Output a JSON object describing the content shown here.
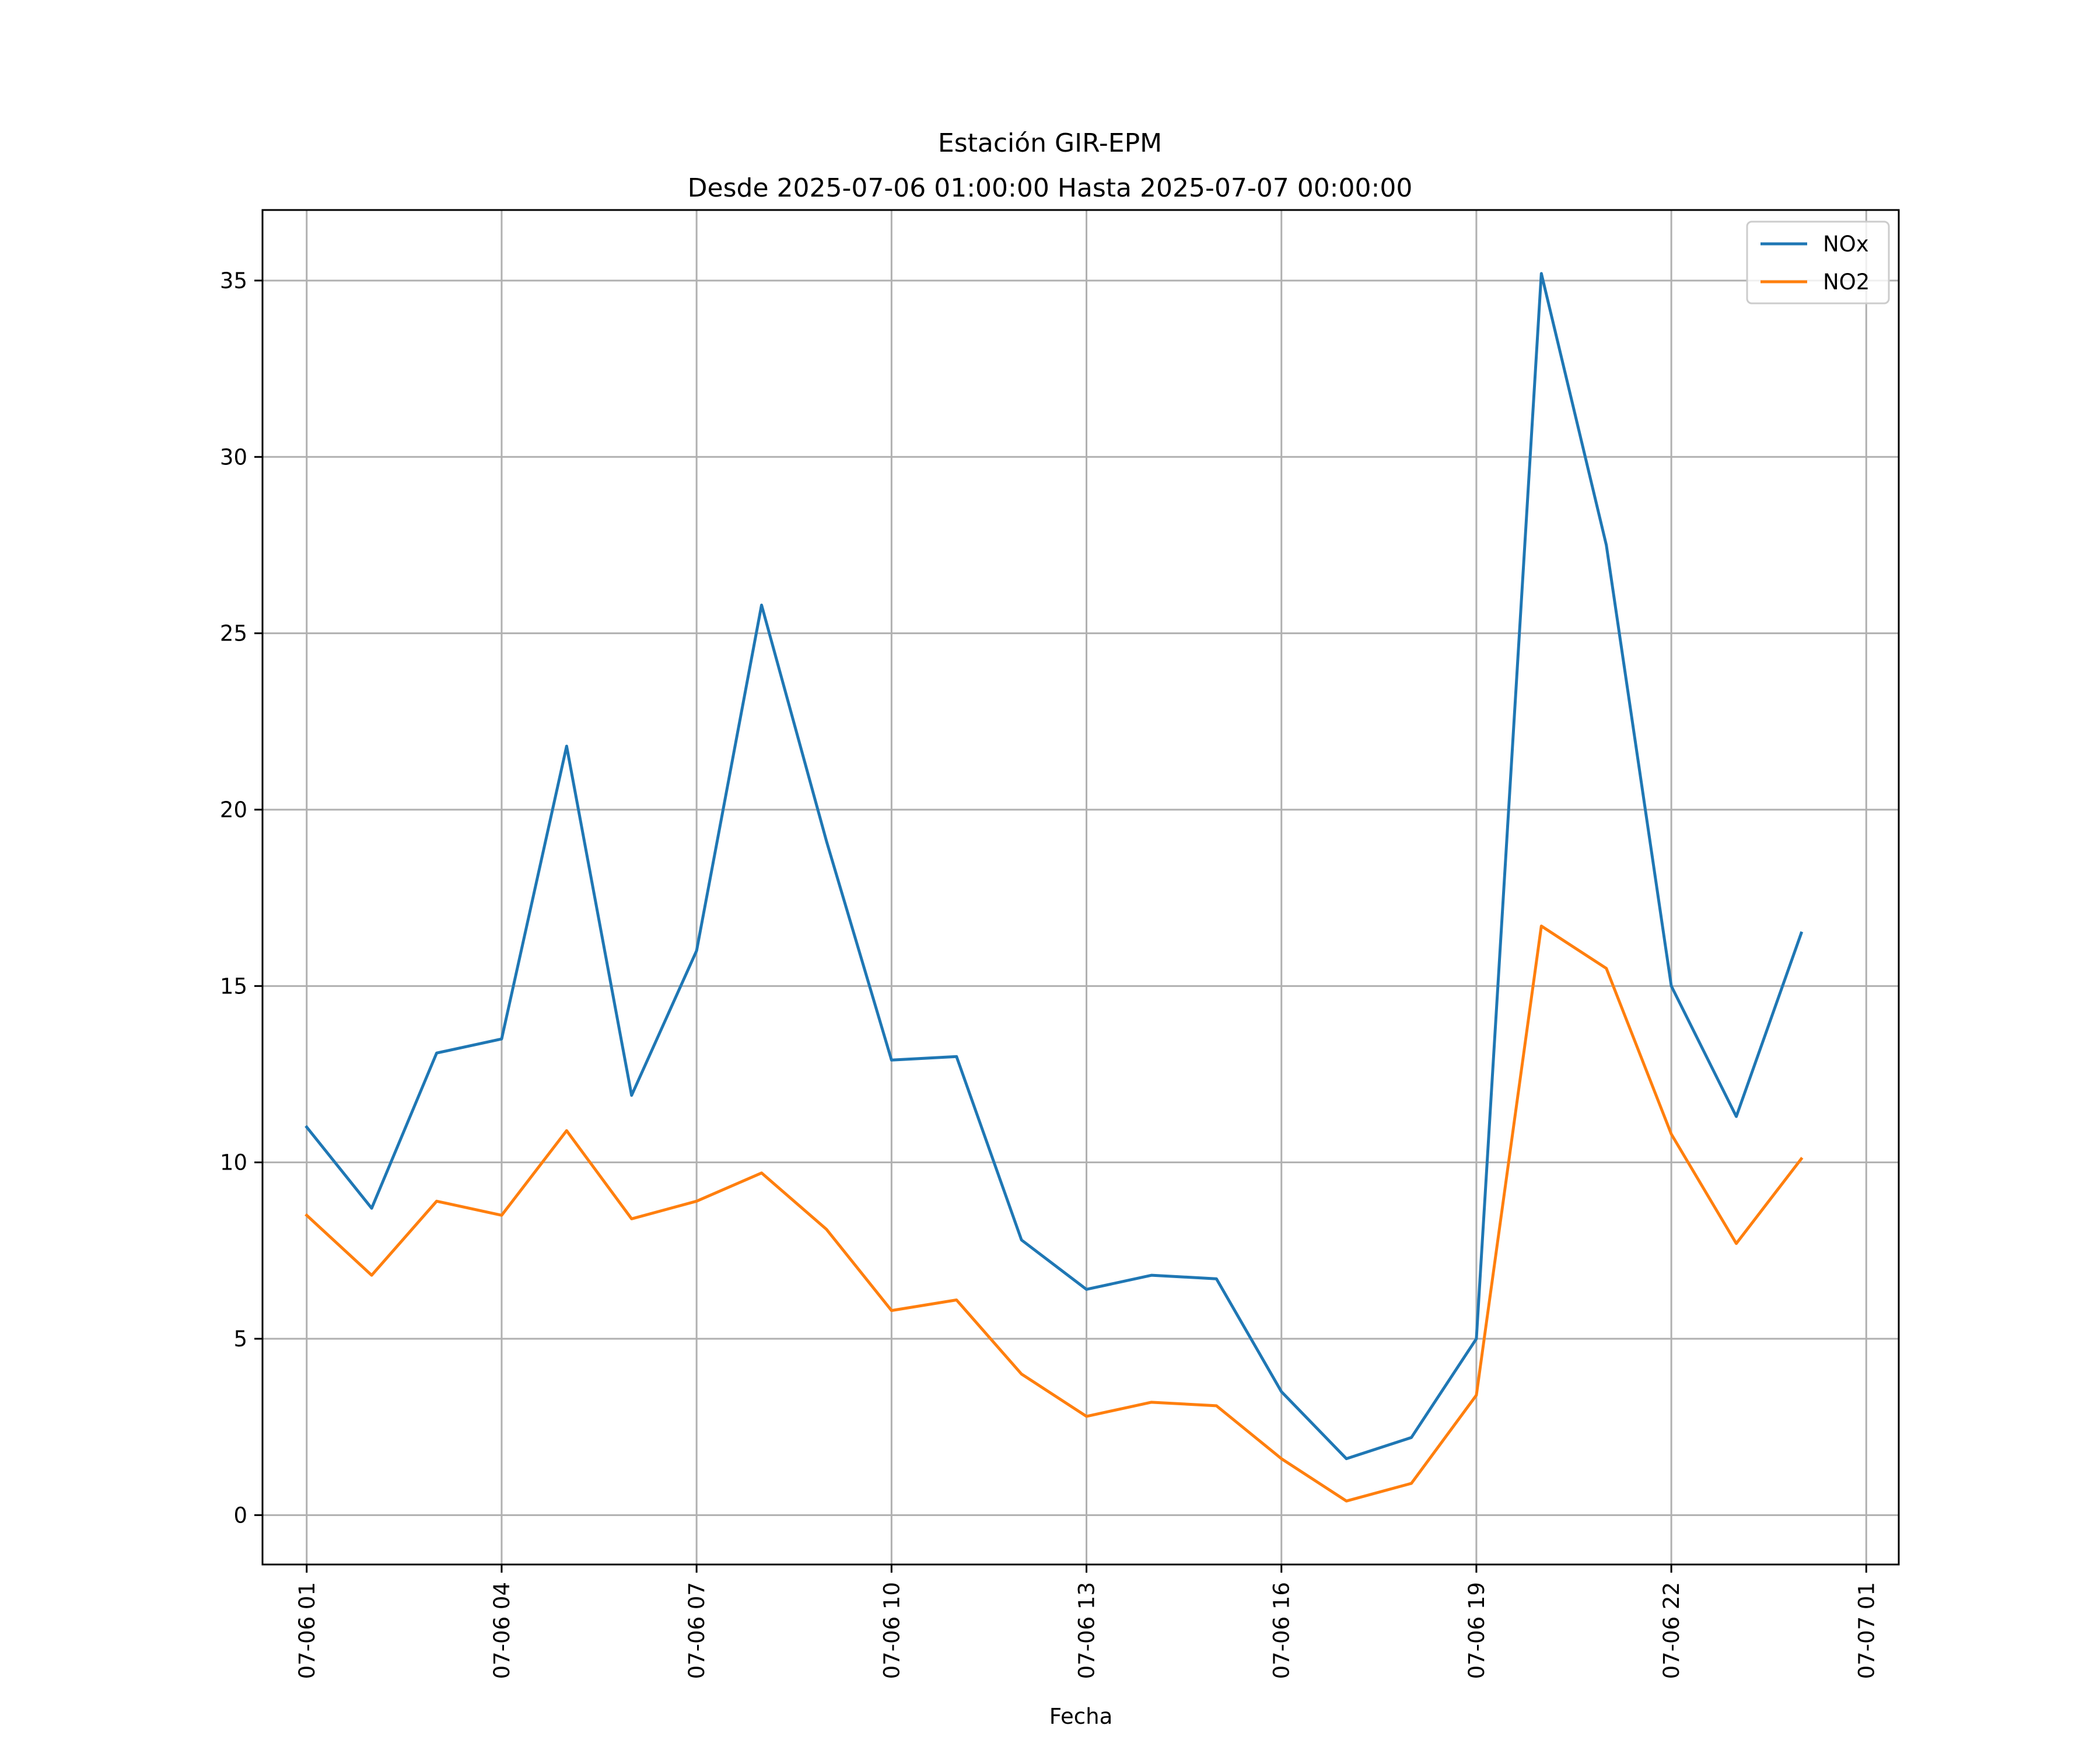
{
  "chart_data": {
    "type": "line",
    "title": "Estación GIR-EPM",
    "subtitle": "Desde 2025-07-06 01:00:00 Hasta 2025-07-07 00:00:00",
    "xlabel": "Fecha",
    "ylabel": "",
    "x": [
      "07-06 01",
      "07-06 02",
      "07-06 03",
      "07-06 04",
      "07-06 05",
      "07-06 06",
      "07-06 07",
      "07-06 08",
      "07-06 09",
      "07-06 10",
      "07-06 11",
      "07-06 12",
      "07-06 13",
      "07-06 14",
      "07-06 15",
      "07-06 16",
      "07-06 17",
      "07-06 18",
      "07-06 19",
      "07-06 20",
      "07-06 21",
      "07-06 22",
      "07-06 23",
      "07-07 00"
    ],
    "xlim": [
      -0.68,
      24.5
    ],
    "x_ticks": [
      {
        "label": "07-06 01",
        "hour": 0
      },
      {
        "label": "07-06 04",
        "hour": 3
      },
      {
        "label": "07-06 07",
        "hour": 6
      },
      {
        "label": "07-06 10",
        "hour": 9
      },
      {
        "label": "07-06 13",
        "hour": 12
      },
      {
        "label": "07-06 16",
        "hour": 15
      },
      {
        "label": "07-06 19",
        "hour": 18
      },
      {
        "label": "07-06 22",
        "hour": 21
      },
      {
        "label": "07-07 01",
        "hour": 24
      }
    ],
    "ylim": [
      -1.4,
      37.0
    ],
    "y_ticks": [
      0,
      5,
      10,
      15,
      20,
      25,
      30,
      35
    ],
    "grid": true,
    "legend_position": "top-right",
    "series": [
      {
        "name": "NOx",
        "color": "#1f77b4",
        "values": [
          11.0,
          8.7,
          13.1,
          13.5,
          21.8,
          11.9,
          16.0,
          25.8,
          19.1,
          12.9,
          13.0,
          7.8,
          6.4,
          6.8,
          6.7,
          3.5,
          1.6,
          2.2,
          5.0,
          35.2,
          27.5,
          15.0,
          11.3,
          16.5
        ]
      },
      {
        "name": "NO2",
        "color": "#ff7f0e",
        "values": [
          8.5,
          6.8,
          8.9,
          8.5,
          10.9,
          8.4,
          8.9,
          9.7,
          8.1,
          5.8,
          6.1,
          4.0,
          2.8,
          3.2,
          3.1,
          1.6,
          0.4,
          0.9,
          3.4,
          16.7,
          15.5,
          10.8,
          7.7,
          10.1
        ]
      }
    ]
  }
}
